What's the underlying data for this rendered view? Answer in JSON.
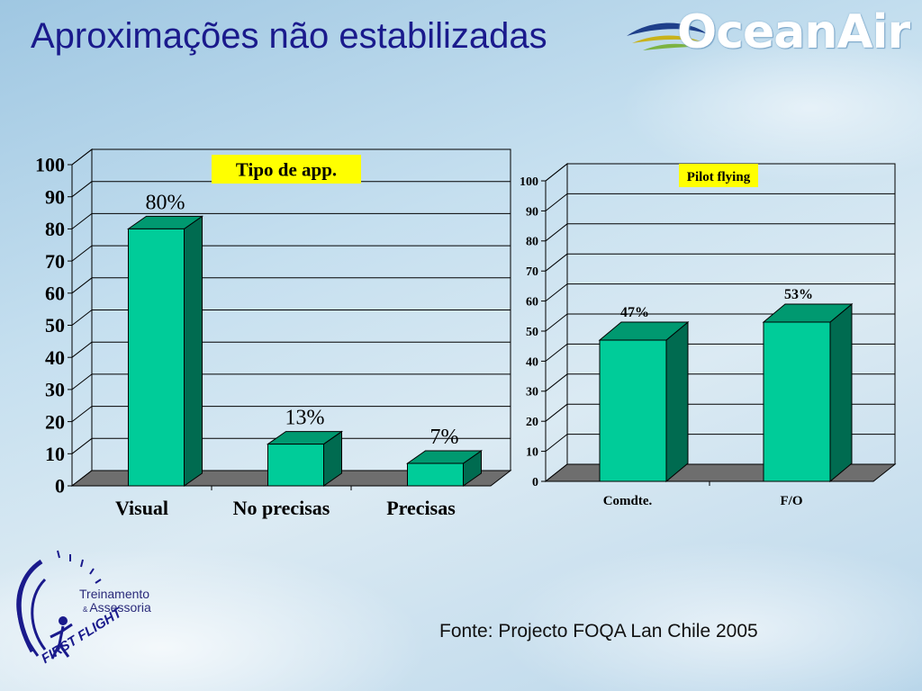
{
  "slide": {
    "title": "Aproximações não estabilizadas",
    "logo_text": "OceanAir",
    "source": "Fonte: Projecto FOQA Lan Chile 2005",
    "footer_logo": {
      "line1": "Treinamento",
      "amp": "&",
      "line2": "Assessoria",
      "brand": "FIRST FLIGHT"
    }
  },
  "colors": {
    "bar_front": "#00cc99",
    "bar_side": "#006b50",
    "bar_top": "#009970",
    "floor": "#6e6e6e",
    "label_bg": "#ffff00",
    "title": "#1a1a8c"
  },
  "chart_data": [
    {
      "type": "bar",
      "title": "Tipo de app.",
      "categories": [
        "Visual",
        "No precisas",
        "Precisas"
      ],
      "values": [
        80,
        13,
        7
      ],
      "data_labels": [
        "80%",
        "13%",
        "7%"
      ],
      "yticks": [
        "0",
        "10",
        "20",
        "30",
        "40",
        "50",
        "60",
        "70",
        "80",
        "90",
        "100"
      ],
      "ylim": [
        0,
        100
      ],
      "grid": true,
      "style": "3d"
    },
    {
      "type": "bar",
      "title": "Pilot flying",
      "categories": [
        "Comdte.",
        "F/O"
      ],
      "values": [
        47,
        53
      ],
      "data_labels": [
        "47%",
        "53%"
      ],
      "yticks": [
        "0",
        "10",
        "20",
        "30",
        "40",
        "50",
        "60",
        "70",
        "80",
        "90",
        "100"
      ],
      "ylim": [
        0,
        100
      ],
      "grid": true,
      "style": "3d"
    }
  ]
}
